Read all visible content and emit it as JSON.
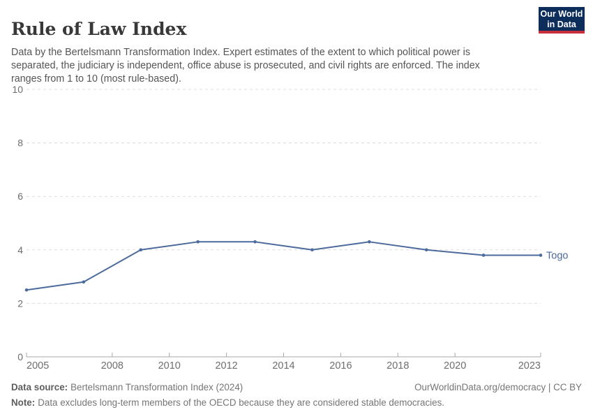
{
  "header": {
    "title": "Rule of Law Index",
    "logo": {
      "line1": "Our World",
      "line2": "in Data"
    }
  },
  "subtitle": "Data by the Bertelsmann Transformation Index. Expert estimates of the extent to which political power is separated, the judiciary is independent, office abuse is prosecuted, and civil rights are enforced. The index ranges from 1 to 10 (most rule-based).",
  "chart_data": {
    "type": "line",
    "title": "Rule of Law Index",
    "xlabel": "",
    "ylabel": "",
    "xlim": [
      2005,
      2023
    ],
    "ylim": [
      0,
      10
    ],
    "xticks": [
      2005,
      2008,
      2010,
      2012,
      2014,
      2016,
      2018,
      2020,
      2023
    ],
    "yticks": [
      0,
      2,
      4,
      6,
      8,
      10
    ],
    "grid": "horizontal-dashed",
    "legend_position": "end-of-line-label",
    "series": [
      {
        "name": "Togo",
        "color": "#4c6a9c",
        "x": [
          2005,
          2007,
          2009,
          2011,
          2013,
          2015,
          2017,
          2019,
          2021,
          2023
        ],
        "values": [
          2.5,
          2.8,
          4.0,
          4.3,
          4.3,
          4.0,
          4.3,
          4.0,
          3.8,
          3.8
        ]
      }
    ]
  },
  "footer": {
    "source_label": "Data source:",
    "source_text": "Bertelsmann Transformation Index (2024)",
    "credit": "OurWorldinData.org/democracy | CC BY",
    "note_label": "Note:",
    "note_text": "Data excludes long-term members of the OECD because they are considered stable democracies."
  },
  "colors": {
    "accent_line": "#4c6a9c",
    "logo_bg": "#0d2e5b",
    "logo_red": "#c7303c",
    "grid": "#dcdcdc",
    "axis": "#a8a8a8",
    "tick_label": "#6e6e6e"
  }
}
